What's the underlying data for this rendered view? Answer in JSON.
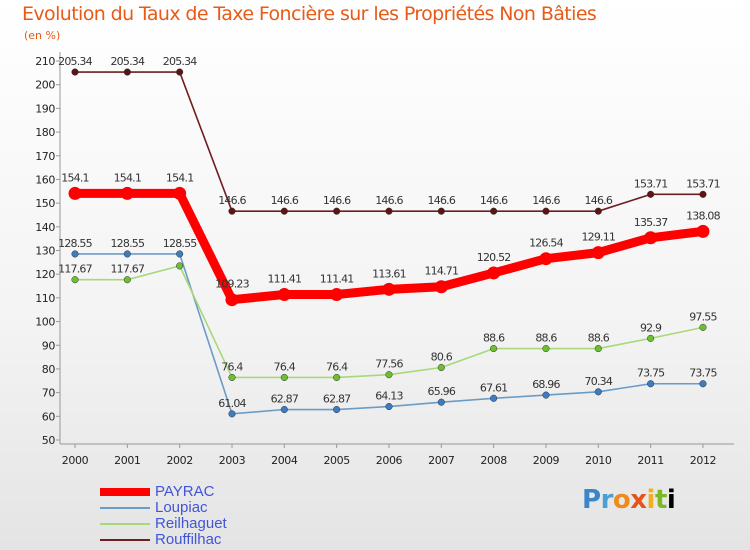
{
  "chart_data": {
    "type": "line",
    "title": "Evolution du Taux de Taxe Foncière sur les Propriétés Non Bâties",
    "subtitle": "(en %)",
    "x": [
      "2000",
      "2001",
      "2002",
      "2003",
      "2004",
      "2005",
      "2006",
      "2007",
      "2008",
      "2009",
      "2010",
      "2011",
      "2012"
    ],
    "ylim": [
      50,
      210
    ],
    "yticks": [
      50,
      60,
      70,
      80,
      90,
      100,
      110,
      120,
      130,
      140,
      150,
      160,
      170,
      180,
      190,
      200,
      210
    ],
    "series": [
      {
        "name": "Rouffilhac",
        "color": "#6e1e1e",
        "marker": "#5c1414",
        "values": [
          205.34,
          205.34,
          205.34,
          146.6,
          146.6,
          146.6,
          146.6,
          146.6,
          146.6,
          146.6,
          146.6,
          153.71,
          153.71
        ],
        "labels": [
          "205.34",
          "205.34",
          "205.34",
          "146.6",
          "146.6",
          "146.6",
          "146.6",
          "146.6",
          "146.6",
          "146.6",
          "146.6",
          "153.71",
          "153.71"
        ]
      },
      {
        "name": "Loupiac",
        "color": "#6a9cc8",
        "marker": "#3d7cc0",
        "values": [
          128.55,
          128.55,
          128.55,
          61.04,
          62.87,
          62.87,
          64.13,
          65.96,
          67.61,
          68.96,
          70.34,
          73.75,
          73.75
        ],
        "labels": [
          "128.55",
          "128.55",
          "128.55",
          "61.04",
          "62.87",
          "62.87",
          "64.13",
          "65.96",
          "67.61",
          "68.96",
          "70.34",
          "73.75",
          "73.75"
        ]
      },
      {
        "name": "Reilhaguet",
        "color": "#a8d878",
        "marker": "#6cc030",
        "values": [
          117.67,
          117.67,
          123.5,
          76.4,
          76.4,
          76.4,
          77.56,
          80.6,
          88.6,
          88.6,
          88.6,
          92.9,
          97.55
        ],
        "labels": [
          "117.67",
          "117.67",
          "",
          "76.4",
          "76.4",
          "76.4",
          "77.56",
          "80.6",
          "88.6",
          "88.6",
          "88.6",
          "92.9",
          "97.55"
        ]
      },
      {
        "name": "PAYRAC",
        "color": "#ff0000",
        "marker": "#ff0000",
        "values": [
          154.1,
          154.1,
          154.1,
          109.23,
          111.41,
          111.41,
          113.61,
          114.71,
          120.52,
          126.54,
          129.11,
          135.37,
          138.08
        ],
        "labels": [
          "154.1",
          "154.1",
          "154.1",
          "109.23",
          "111.41",
          "111.41",
          "113.61",
          "114.71",
          "120.52",
          "126.54",
          "129.11",
          "135.37",
          "138.08"
        ]
      }
    ],
    "legend": [
      "PAYRAC",
      "Loupiac",
      "Reilhaguet",
      "Rouffilhac"
    ],
    "legend_position": "bottom-left",
    "grid": false
  },
  "logo": {
    "letters": [
      "P",
      "r",
      "o",
      "x",
      "i",
      "t"
    ]
  }
}
